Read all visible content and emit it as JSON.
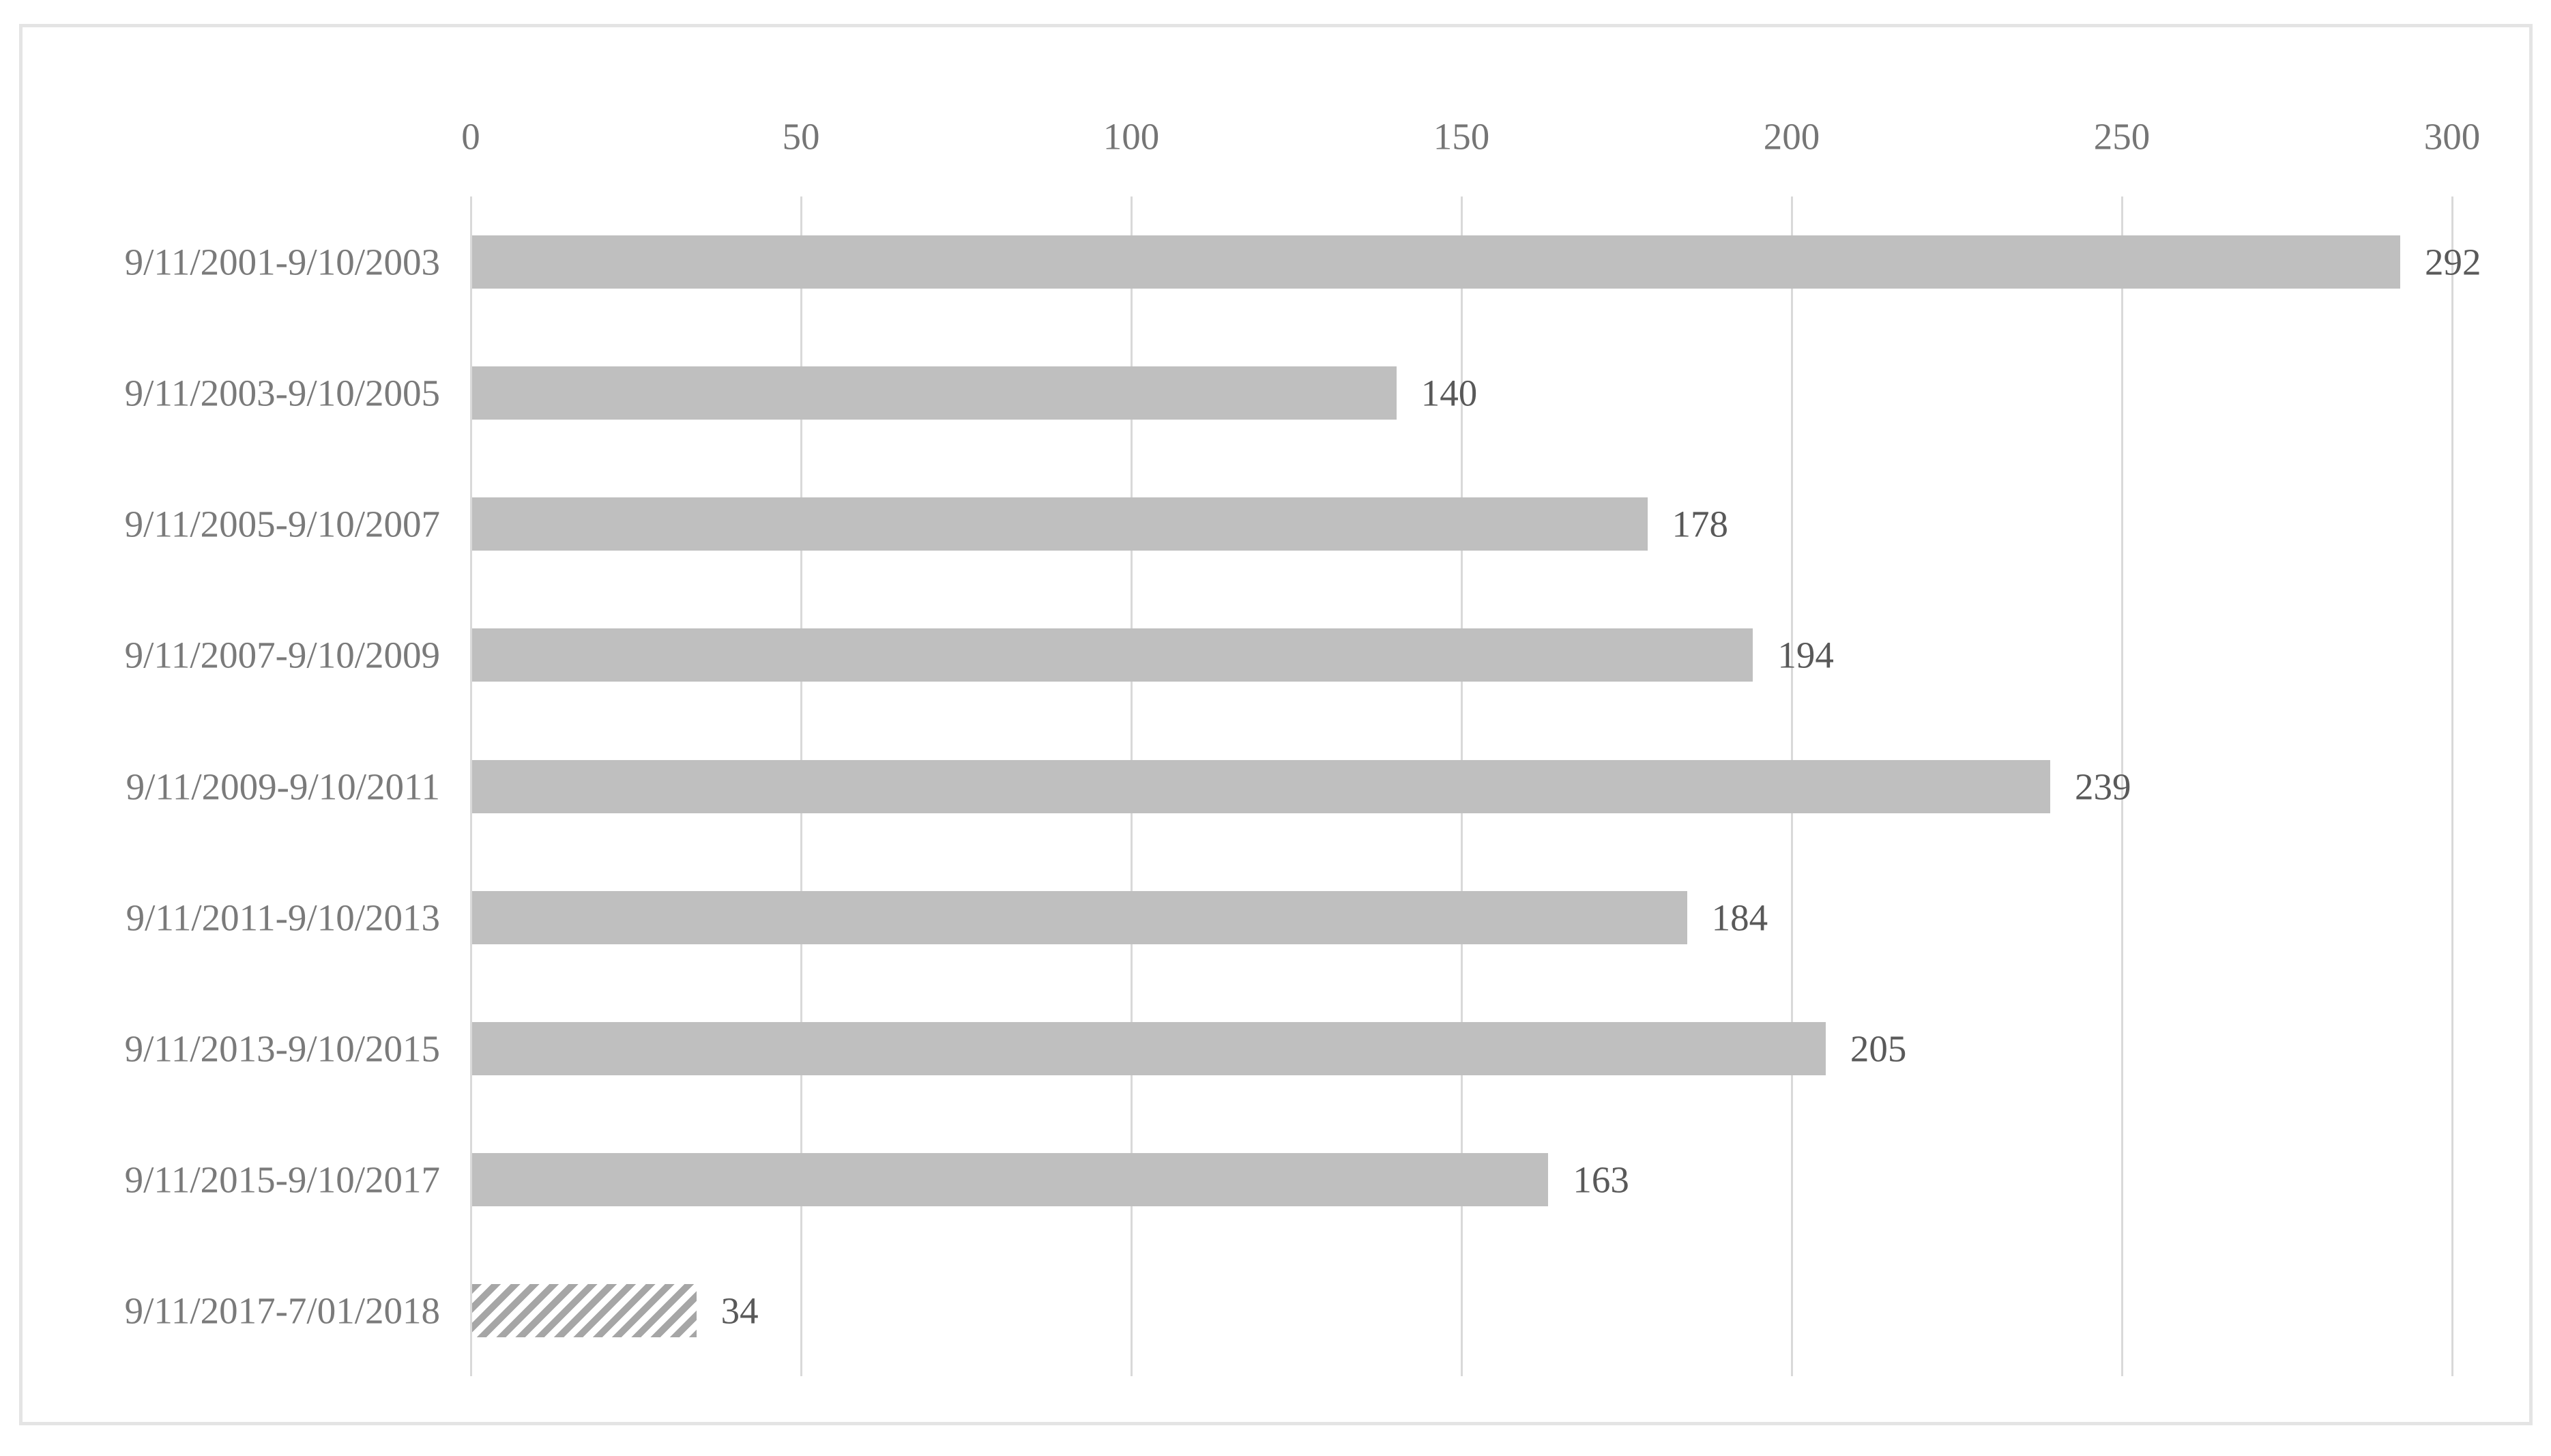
{
  "chart_data": {
    "type": "bar",
    "orientation": "horizontal",
    "title": "",
    "xlabel": "",
    "ylabel": "",
    "categories": [
      "9/11/2001-9/10/2003",
      "9/11/2003-9/10/2005",
      "9/11/2005-9/10/2007",
      "9/11/2007-9/10/2009",
      "9/11/2009-9/10/2011",
      "9/11/2011-9/10/2013",
      "9/11/2013-9/10/2015",
      "9/11/2015-9/10/2017",
      "9/11/2017-7/01/2018"
    ],
    "values": [
      292,
      140,
      178,
      194,
      239,
      184,
      205,
      163,
      34
    ],
    "data_labels": [
      "292",
      "140",
      "178",
      "194",
      "239",
      "184",
      "205",
      "163",
      "34"
    ],
    "x_ticks": [
      0,
      50,
      100,
      150,
      200,
      250,
      300
    ],
    "x_tick_labels": [
      "0",
      "50",
      "100",
      "150",
      "200",
      "250",
      "300"
    ],
    "xlim": [
      0,
      300
    ],
    "grid": "vertical-only",
    "legend": "none",
    "hatched_index": 8,
    "colors": {
      "bar_fill": "#bfbfbf",
      "hatch_stripe": "#a6a6a6",
      "gridline": "#d9d9d9",
      "frame_border": "#e4e4e4",
      "axis_label_text": "#757575",
      "category_label_text": "#7a7a7a",
      "value_label_text": "#595959",
      "background": "#ffffff"
    }
  }
}
